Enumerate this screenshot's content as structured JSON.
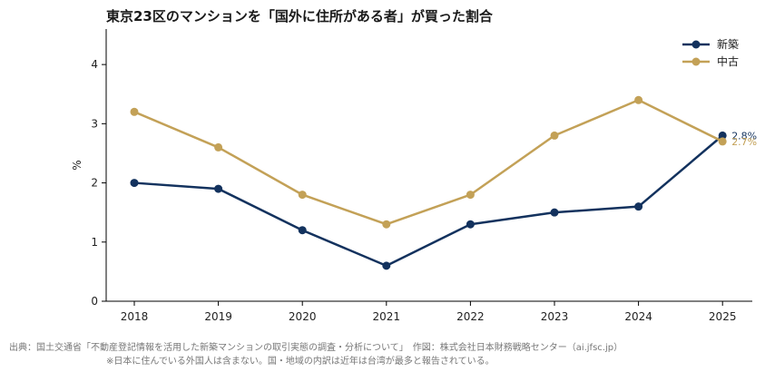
{
  "chart_data": {
    "type": "line",
    "title": "東京23区のマンションを「国外に住所がある者」が買った割合",
    "xlabel": "",
    "ylabel": "%",
    "x": [
      "2018",
      "2019",
      "2020",
      "2021",
      "2022",
      "2023",
      "2024",
      "2025"
    ],
    "yticks": [
      "0",
      "1",
      "2",
      "3",
      "4"
    ],
    "ylim": [
      0,
      4.6
    ],
    "grid": false,
    "legend_position": "top-right",
    "series": [
      {
        "name": "新築",
        "values": [
          2.0,
          1.9,
          1.2,
          0.6,
          1.3,
          1.5,
          1.6,
          2.8
        ],
        "color": "#13325e",
        "end_label": "2.8%"
      },
      {
        "name": "中古",
        "values": [
          3.2,
          2.6,
          1.8,
          1.3,
          1.8,
          2.8,
          3.4,
          2.7
        ],
        "color": "#c3a157",
        "end_label": "2.7%"
      }
    ]
  },
  "source": {
    "line1": "出典：国土交通省「不動産登記情報を活用した新築マンションの取引実態の調査・分析について」　作図：株式会社日本財務戦略センター（ai.jfsc.jp）",
    "line2": "※日本に住んでいる外国人は含まない。国・地域の内訳は近年は台湾が最多と報告されている。"
  }
}
